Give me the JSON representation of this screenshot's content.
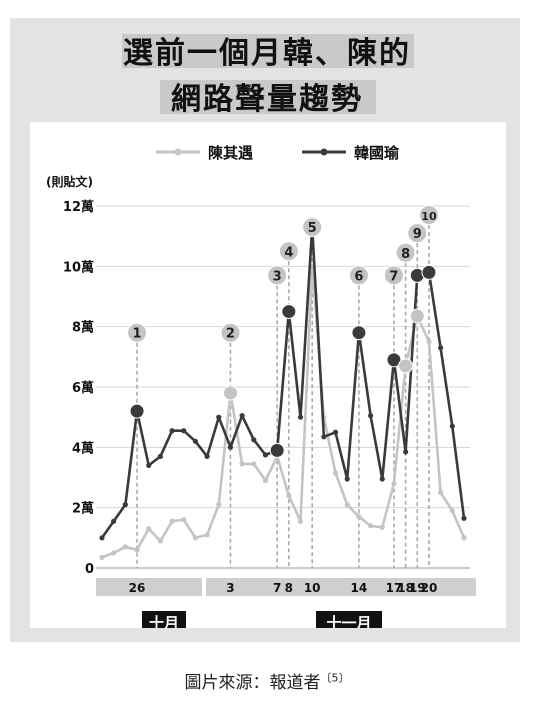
{
  "title_line1": "選前一個月韓、陳的",
  "title_line2": "網路聲量趨勢",
  "source_text": "圖片來源：報道者",
  "source_ref": "〔5〕",
  "month_labels": [
    "十月",
    "十一月"
  ],
  "colors": {
    "chen": "#c4c4c4",
    "han": "#3a3a3a",
    "marker": "#c4c4c4",
    "guide": "#aaaaaa"
  },
  "chart_data": {
    "type": "line",
    "ylabel": "(則貼文)",
    "yticks": [
      "0",
      "2萬",
      "4萬",
      "6萬",
      "8萬",
      "10萬",
      "12萬"
    ],
    "ylim": [
      0,
      120000
    ],
    "x_tick_labels": [
      {
        "x": 4,
        "label": "26"
      },
      {
        "x": 12,
        "label": "3"
      },
      {
        "x": 16,
        "label": "7"
      },
      {
        "x": 17,
        "label": "8"
      },
      {
        "x": 19,
        "label": "10"
      },
      {
        "x": 23,
        "label": "14"
      },
      {
        "x": 26,
        "label": "17"
      },
      {
        "x": 27,
        "label": "18"
      },
      {
        "x": 28,
        "label": "19"
      },
      {
        "x": 29,
        "label": "20"
      }
    ],
    "x": [
      1,
      2,
      3,
      4,
      5,
      6,
      7,
      8,
      9,
      10,
      11,
      12,
      13,
      14,
      15,
      16,
      17,
      18,
      19,
      20,
      21,
      22,
      23,
      24,
      25,
      26,
      27,
      28,
      29,
      30,
      31,
      32
    ],
    "series": [
      {
        "name": "陳其遇",
        "values": [
          3500,
          5000,
          7000,
          6000,
          13000,
          9000,
          15500,
          16000,
          10000,
          11000,
          21000,
          58000,
          34500,
          34500,
          29000,
          37000,
          24000,
          15500,
          100000,
          50000,
          31500,
          21000,
          17000,
          14000,
          13500,
          28000,
          67000,
          83500,
          75000,
          25000,
          19000,
          10000
        ]
      },
      {
        "name": "韓國瑜",
        "values": [
          10000,
          15500,
          21000,
          52000,
          34000,
          37000,
          45500,
          45500,
          42000,
          37000,
          50000,
          40000,
          50500,
          42500,
          37500,
          39000,
          85000,
          50000,
          113000,
          43500,
          45000,
          29500,
          78000,
          50500,
          29500,
          69000,
          38500,
          97000,
          98000,
          73000,
          47000,
          16500
        ]
      }
    ],
    "annotations": [
      {
        "label": "1",
        "x": 4,
        "y": 78000
      },
      {
        "label": "2",
        "x": 12,
        "y": 78000
      },
      {
        "label": "3",
        "x": 16,
        "y": 97000
      },
      {
        "label": "4",
        "x": 17,
        "y": 105000
      },
      {
        "label": "5",
        "x": 19,
        "y": 113000
      },
      {
        "label": "6",
        "x": 23,
        "y": 97000
      },
      {
        "label": "7",
        "x": 26,
        "y": 97000
      },
      {
        "label": "8",
        "x": 27,
        "y": 104500
      },
      {
        "label": "9",
        "x": 28,
        "y": 111000
      },
      {
        "label": "10",
        "x": 29,
        "y": 117000
      }
    ],
    "big_markers": [
      {
        "series": "韓國瑜",
        "x": 4
      },
      {
        "series": "陳其遇",
        "x": 12
      },
      {
        "series": "韓國瑜",
        "x": 16
      },
      {
        "series": "韓國瑜",
        "x": 17
      },
      {
        "series": "韓國瑜",
        "x": 19
      },
      {
        "series": "韓國瑜",
        "x": 23
      },
      {
        "series": "韓國瑜",
        "x": 26
      },
      {
        "series": "陳其遇",
        "x": 27
      },
      {
        "series": "陳其遇",
        "x": 28
      },
      {
        "series": "韓國瑜",
        "x": 28
      },
      {
        "series": "韓國瑜",
        "x": 29
      }
    ],
    "legend_placement": "top",
    "grid": "horizontal"
  }
}
